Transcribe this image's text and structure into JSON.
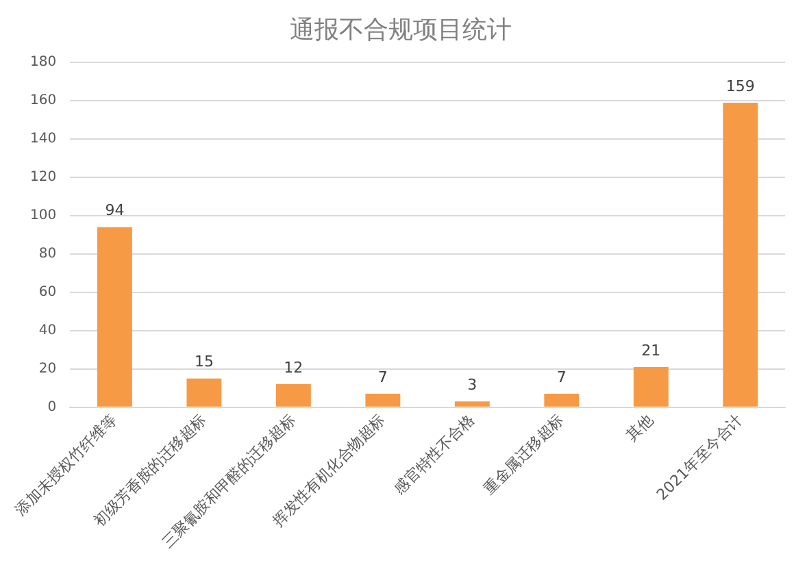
{
  "chart_data": {
    "type": "bar",
    "title": "通报不合规项目统计",
    "categories": [
      "添加未授权竹纤维等",
      "初级芳香胺的迁移超标",
      "三聚氰胺和甲醛的迁移超标",
      "挥发性有机化合物超标",
      "感官特性不合格",
      "重金属迁移超标",
      "其他",
      "2021年至今合计"
    ],
    "values": [
      94,
      15,
      12,
      7,
      3,
      7,
      21,
      159
    ],
    "color": "#f79a45",
    "ylim": [
      0,
      180
    ],
    "yticks": [
      0,
      20,
      40,
      60,
      80,
      100,
      120,
      140,
      160,
      180
    ],
    "grid": "y",
    "data_labels": true,
    "legend": false
  }
}
